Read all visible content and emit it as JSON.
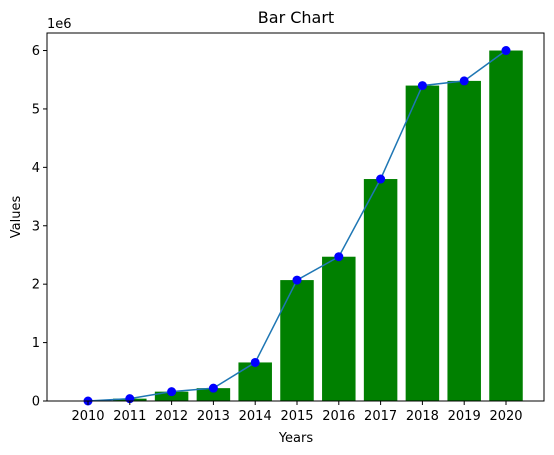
{
  "chart_data": {
    "type": "bar",
    "title": "Bar Chart",
    "xlabel": "Years",
    "ylabel": "Values",
    "y_offset_text": "1e6",
    "categories": [
      "2010",
      "2011",
      "2012",
      "2013",
      "2014",
      "2015",
      "2016",
      "2017",
      "2018",
      "2019",
      "2020"
    ],
    "series": [
      {
        "kind": "bar",
        "color": "#008000",
        "values": [
          0,
          40000,
          160000,
          220000,
          660000,
          2070000,
          2470000,
          3800000,
          5400000,
          5480000,
          6000000
        ]
      },
      {
        "kind": "line",
        "color": "#1f77b4",
        "marker_color": "#0000ff",
        "values": [
          0,
          40000,
          160000,
          220000,
          660000,
          2070000,
          2470000,
          3800000,
          5400000,
          5480000,
          6000000
        ]
      }
    ],
    "ylim": [
      0,
      6300000
    ],
    "yticks": [
      0,
      1,
      2,
      3,
      4,
      5,
      6
    ],
    "ytick_scale": 1000000,
    "grid": false,
    "legend": "none"
  }
}
